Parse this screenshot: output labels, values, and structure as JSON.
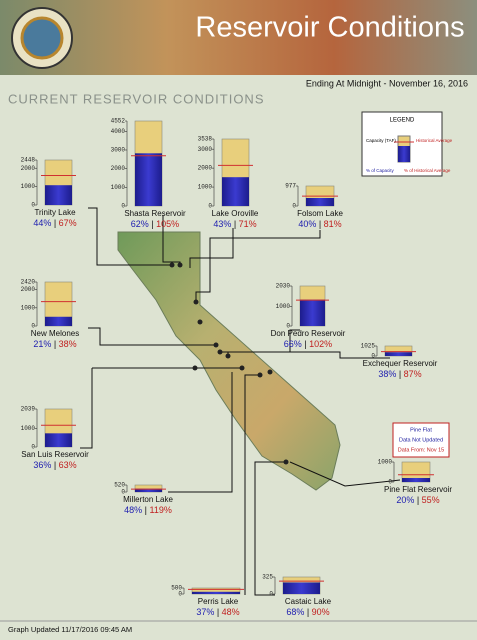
{
  "header": {
    "title": "Reservoir Conditions",
    "subtitle": "Ending At Midnight - November 16, 2016",
    "section_title": "CURRENT RESERVOIR CONDITIONS"
  },
  "legend": {
    "title": "LEGEND",
    "capacity": "Capacity (TAF)",
    "historical_average": "Historical Average",
    "pct_capacity": "% of Capacity",
    "pct_average": "% of Historical Average"
  },
  "separator": "|",
  "note": {
    "lines": [
      "Pine Flat",
      "Data Not Updated",
      "Data From: Nov 15"
    ]
  },
  "footer": "Graph Updated 11/17/2016 09:45 AM",
  "reservoirs": [
    {
      "name": "Trinity Lake",
      "capacity": 2448,
      "ticks": [
        0,
        1000,
        2000
      ],
      "pct_capacity": 44,
      "pct_capacity_label": "44%",
      "pct_average": 67,
      "pct_average_label": "67%"
    },
    {
      "name": "Shasta Reservoir",
      "capacity": 4552,
      "ticks": [
        0,
        1000,
        2000,
        3000,
        4000
      ],
      "pct_capacity": 62,
      "pct_capacity_label": "62%",
      "pct_average": 105,
      "pct_average_label": "105%"
    },
    {
      "name": "Lake Oroville",
      "capacity": 3538,
      "ticks": [
        0,
        1000,
        2000,
        3000
      ],
      "pct_capacity": 43,
      "pct_capacity_label": "43%",
      "pct_average": 71,
      "pct_average_label": "71%"
    },
    {
      "name": "Folsom Lake",
      "capacity": 977,
      "ticks": [
        0
      ],
      "pct_capacity": 40,
      "pct_capacity_label": "40%",
      "pct_average": 81,
      "pct_average_label": "81%"
    },
    {
      "name": "New Melones",
      "capacity": 2420,
      "ticks": [
        0,
        1000,
        2000
      ],
      "pct_capacity": 21,
      "pct_capacity_label": "21%",
      "pct_average": 38,
      "pct_average_label": "38%"
    },
    {
      "name": "Don Pedro Reservoir",
      "capacity": 2030,
      "ticks": [
        0,
        1000
      ],
      "pct_capacity": 66,
      "pct_capacity_label": "66%",
      "pct_average": 102,
      "pct_average_label": "102%"
    },
    {
      "name": "Exchequer Reservoir",
      "capacity": 1025,
      "ticks": [
        0
      ],
      "pct_capacity": 38,
      "pct_capacity_label": "38%",
      "pct_average": 87,
      "pct_average_label": "87%"
    },
    {
      "name": "San Luis Reservoir",
      "capacity": 2039,
      "ticks": [
        0,
        1000
      ],
      "pct_capacity": 36,
      "pct_capacity_label": "36%",
      "pct_average": 63,
      "pct_average_label": "63%"
    },
    {
      "name": "Pine Flat Reservoir",
      "capacity": 1000,
      "ticks": [
        0
      ],
      "pct_capacity": 20,
      "pct_capacity_label": "20%",
      "pct_average": 55,
      "pct_average_label": "55%"
    },
    {
      "name": "Millerton Lake",
      "capacity": 520,
      "ticks": [
        0
      ],
      "pct_capacity": 48,
      "pct_capacity_label": "48%",
      "pct_average": 119,
      "pct_average_label": "119%"
    },
    {
      "name": "Perris Lake",
      "capacity": 500,
      "ticks": [
        0
      ],
      "pct_capacity": 37,
      "pct_capacity_label": "37%",
      "pct_average": 48,
      "pct_average_label": "48%"
    },
    {
      "name": "Castaic Lake",
      "capacity": 325,
      "ticks": [
        0
      ],
      "pct_capacity": 68,
      "pct_capacity_label": "68%",
      "pct_average": 90,
      "pct_average_label": "90%"
    }
  ]
}
